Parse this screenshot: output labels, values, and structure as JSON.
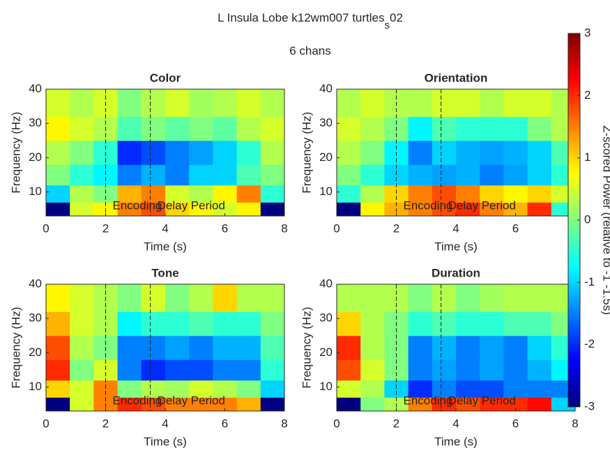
{
  "title": [
    "L Insula Lobe k12wm007 turtles",
    "s",
    "02"
  ],
  "subtitle": "6 chans",
  "colorbar": {
    "label": "Z-scored Power (relative to -1 -1.5s)",
    "colormap": "jet",
    "clim": [
      -3,
      3
    ],
    "ticks": [
      -3,
      -2,
      -1,
      0,
      1,
      2,
      3
    ]
  },
  "chart_data": [
    {
      "type": "heatmap",
      "title": "Color",
      "xlabel": "Time (s)",
      "ylabel": "Frequency (Hz)",
      "xlim": [
        0,
        8
      ],
      "xticks": [
        0,
        2,
        4,
        6,
        8
      ],
      "ylim": [
        3,
        40
      ],
      "yticks": [
        10,
        20,
        30,
        40
      ],
      "markers": [
        {
          "x": 2,
          "label": "Encoding"
        },
        {
          "x": 3.5,
          "label": "Delay Period"
        }
      ],
      "xbins": [
        0,
        0.8,
        1.6,
        2.4,
        3.2,
        4,
        4.8,
        5.6,
        6.4,
        7.2,
        8
      ],
      "ybins": [
        3,
        7,
        12,
        18,
        25,
        32,
        40
      ],
      "z": [
        [
          -3,
          0.5,
          0.8,
          1.5,
          1.8,
          1,
          0.8,
          0.5,
          0.8,
          -3
        ],
        [
          -1,
          0.3,
          0,
          1.2,
          1.5,
          0.5,
          0.3,
          0.8,
          1.5,
          -0.5
        ],
        [
          0,
          -0.5,
          -0.8,
          -1.5,
          -1.2,
          -1.5,
          -1,
          -1,
          -0.3,
          0
        ],
        [
          0.3,
          0,
          -0.5,
          -2,
          -1.8,
          -1.5,
          -1.3,
          -1,
          -0.5,
          0.3
        ],
        [
          0.8,
          0.5,
          0.3,
          -0.3,
          0,
          -0.2,
          0,
          -0.2,
          0.3,
          0.5
        ],
        [
          0.5,
          0.3,
          0.5,
          0,
          0.3,
          0.5,
          0.2,
          0.3,
          0.5,
          0.3
        ]
      ]
    },
    {
      "type": "heatmap",
      "title": "Orientation",
      "xlabel": "Time (s)",
      "ylabel": "Frequency (Hz)",
      "xlim": [
        0,
        8
      ],
      "xticks": [
        0,
        2,
        4,
        6,
        8
      ],
      "ylim": [
        3,
        40
      ],
      "yticks": [
        10,
        20,
        30,
        40
      ],
      "markers": [
        {
          "x": 2,
          "label": "Encoding"
        },
        {
          "x": 3.5,
          "label": "Delay Period"
        }
      ],
      "xbins": [
        0,
        0.8,
        1.6,
        2.4,
        3.2,
        4,
        4.8,
        5.6,
        6.4,
        7.2,
        8
      ],
      "ybins": [
        3,
        7,
        12,
        18,
        25,
        32,
        40
      ],
      "z": [
        [
          -3,
          0.8,
          1.2,
          1.5,
          1.8,
          2,
          1.5,
          1.2,
          2,
          -0.5
        ],
        [
          -0.5,
          0.3,
          1,
          1.5,
          1.8,
          1.5,
          1,
          0.8,
          1,
          0.5
        ],
        [
          0,
          -0.5,
          -1,
          -1.2,
          -1.3,
          -1.2,
          -1.5,
          -1.3,
          -1,
          -0.5
        ],
        [
          0.3,
          0,
          -0.8,
          -1.5,
          -1,
          -1.2,
          -1.3,
          -1.2,
          -1,
          -0.3
        ],
        [
          0.5,
          0.3,
          0,
          -0.8,
          -0.3,
          -0.5,
          -0.5,
          -0.5,
          0,
          0.3
        ],
        [
          0.3,
          0.5,
          0.3,
          0.3,
          0.5,
          0.5,
          0.3,
          0.5,
          0.5,
          0.3
        ]
      ]
    },
    {
      "type": "heatmap",
      "title": "Tone",
      "xlabel": "Time (s)",
      "ylabel": "Frequency (Hz)",
      "xlim": [
        0,
        8
      ],
      "xticks": [
        0,
        2,
        4,
        6,
        8
      ],
      "ylim": [
        3,
        40
      ],
      "yticks": [
        10,
        20,
        30,
        40
      ],
      "markers": [
        {
          "x": 2,
          "label": "Encoding"
        },
        {
          "x": 3.5,
          "label": "Delay Period"
        }
      ],
      "xbins": [
        0,
        0.8,
        1.6,
        2.4,
        3.2,
        4,
        4.8,
        5.6,
        6.4,
        7.2,
        8
      ],
      "ybins": [
        3,
        7,
        12,
        18,
        25,
        32,
        40
      ],
      "z": [
        [
          -3,
          0.5,
          1.5,
          2,
          1.8,
          1.5,
          1.5,
          1.5,
          1.2,
          -3
        ],
        [
          1,
          0.5,
          1.5,
          0,
          0.3,
          0.2,
          0.5,
          0.3,
          0,
          -1
        ],
        [
          2,
          0,
          0.5,
          -1.5,
          -2,
          -1.8,
          -1.8,
          -1.5,
          -1.5,
          -0.5
        ],
        [
          1.8,
          0.3,
          0,
          -1.5,
          -1.5,
          -1.3,
          -1.5,
          -1.2,
          -1.2,
          -0.3
        ],
        [
          1.2,
          0.5,
          0.3,
          -0.8,
          -0.5,
          -0.5,
          -0.3,
          -0.5,
          -0.5,
          0
        ],
        [
          0.8,
          0.5,
          0.3,
          0,
          0.5,
          0,
          0.3,
          1,
          0.3,
          0.3
        ]
      ]
    },
    {
      "type": "heatmap",
      "title": "Duration",
      "xlabel": "Time (s)",
      "ylabel": "Frequency (Hz)",
      "xlim": [
        0,
        8
      ],
      "xticks": [
        0,
        2,
        4,
        6,
        8
      ],
      "ylim": [
        3,
        40
      ],
      "yticks": [
        10,
        20,
        30,
        40
      ],
      "markers": [
        {
          "x": 2,
          "label": "Encoding"
        },
        {
          "x": 3.5,
          "label": "Delay Period"
        }
      ],
      "xbins": [
        0,
        0.8,
        1.6,
        2.4,
        3.2,
        4,
        4.8,
        5.6,
        6.4,
        7.2,
        8
      ],
      "ybins": [
        3,
        7,
        12,
        18,
        25,
        32,
        40
      ],
      "z": [
        [
          -3,
          0,
          0.3,
          1.5,
          2,
          1.8,
          2,
          2,
          2.2,
          -1
        ],
        [
          0.5,
          0.3,
          -1,
          -2,
          -1.5,
          -1.8,
          -1.8,
          -1.5,
          -1.5,
          -1.5
        ],
        [
          1.8,
          0.5,
          0,
          -1.5,
          -1.3,
          -1.5,
          -1.3,
          -1.5,
          -1.2,
          -0.8
        ],
        [
          2,
          0.3,
          0,
          -1.5,
          -1.2,
          -1.5,
          -1.3,
          -1.5,
          -1,
          -0.5
        ],
        [
          1,
          0.3,
          0,
          -0.5,
          -0.3,
          -0.5,
          -0.5,
          -0.3,
          -0.3,
          0
        ],
        [
          0.3,
          0.3,
          0.3,
          0,
          0.3,
          0,
          0.2,
          0.3,
          0.3,
          0.3
        ]
      ]
    }
  ]
}
